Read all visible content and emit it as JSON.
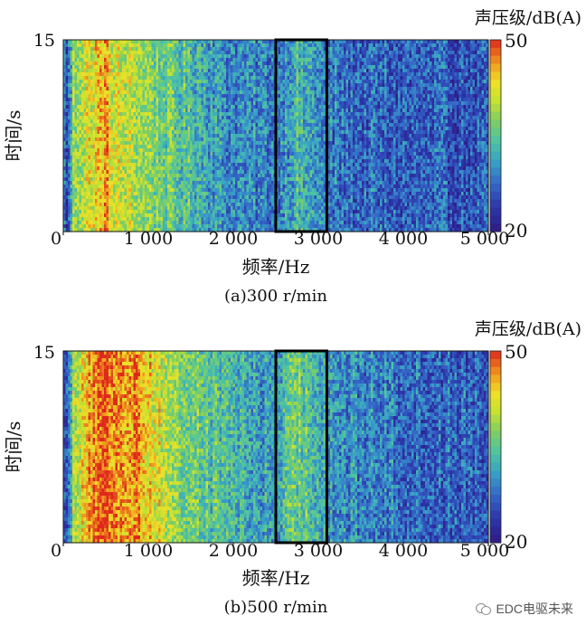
{
  "chart_data": [
    {
      "type": "heatmap",
      "caption": "(a)300 r/min",
      "xlabel": "频率/Hz",
      "ylabel": "时间/s",
      "xlim": [
        0,
        5000
      ],
      "ylim": [
        0,
        15
      ],
      "xticks": [
        0,
        1000,
        2000,
        3000,
        4000,
        5000
      ],
      "xtick_labels": [
        "0",
        "1 000",
        "2 000",
        "3 000",
        "4 000",
        "5 000"
      ],
      "ytick_labels": [
        "0",
        "15"
      ],
      "colorbar": {
        "title": "声压级/dB(A)",
        "min": 20,
        "max": 50,
        "labels": [
          "50",
          "20"
        ]
      },
      "highlight_box": {
        "x": [
          2500,
          3100
        ],
        "y": [
          0,
          15
        ]
      },
      "band_levels": [
        {
          "freq": 0,
          "db": 30
        },
        {
          "freq": 50,
          "db": 24
        },
        {
          "freq": 120,
          "db": 38
        },
        {
          "freq": 250,
          "db": 41
        },
        {
          "freq": 400,
          "db": 43
        },
        {
          "freq": 500,
          "db": 46
        },
        {
          "freq": 600,
          "db": 41
        },
        {
          "freq": 800,
          "db": 40
        },
        {
          "freq": 1000,
          "db": 38
        },
        {
          "freq": 1300,
          "db": 35
        },
        {
          "freq": 1600,
          "db": 33
        },
        {
          "freq": 1900,
          "db": 30
        },
        {
          "freq": 2200,
          "db": 29
        },
        {
          "freq": 2500,
          "db": 29
        },
        {
          "freq": 2750,
          "db": 33
        },
        {
          "freq": 2950,
          "db": 31
        },
        {
          "freq": 3100,
          "db": 28
        },
        {
          "freq": 3600,
          "db": 27
        },
        {
          "freq": 4200,
          "db": 26
        },
        {
          "freq": 5000,
          "db": 26
        }
      ]
    },
    {
      "type": "heatmap",
      "caption": "(b)500 r/min",
      "xlabel": "频率/Hz",
      "ylabel": "时间/s",
      "xlim": [
        0,
        5000
      ],
      "ylim": [
        0,
        15
      ],
      "xticks": [
        0,
        1000,
        2000,
        3000,
        4000,
        5000
      ],
      "xtick_labels": [
        "0",
        "1 000",
        "2 000",
        "3 000",
        "4 000",
        "5 000"
      ],
      "ytick_labels": [
        "0",
        "15"
      ],
      "colorbar": {
        "title": "声压级/dB(A)",
        "min": 20,
        "max": 50,
        "labels": [
          "50",
          "20"
        ]
      },
      "highlight_box": {
        "x": [
          2500,
          3100
        ],
        "y": [
          0,
          15
        ]
      },
      "band_levels": [
        {
          "freq": 0,
          "db": 30
        },
        {
          "freq": 50,
          "db": 24
        },
        {
          "freq": 120,
          "db": 40
        },
        {
          "freq": 250,
          "db": 44
        },
        {
          "freq": 400,
          "db": 47
        },
        {
          "freq": 500,
          "db": 48
        },
        {
          "freq": 700,
          "db": 47
        },
        {
          "freq": 900,
          "db": 46
        },
        {
          "freq": 1100,
          "db": 42
        },
        {
          "freq": 1400,
          "db": 37
        },
        {
          "freq": 1700,
          "db": 35
        },
        {
          "freq": 2000,
          "db": 33
        },
        {
          "freq": 2300,
          "db": 31
        },
        {
          "freq": 2500,
          "db": 31
        },
        {
          "freq": 2750,
          "db": 36
        },
        {
          "freq": 2950,
          "db": 34
        },
        {
          "freq": 3200,
          "db": 30
        },
        {
          "freq": 3700,
          "db": 29
        },
        {
          "freq": 4300,
          "db": 27
        },
        {
          "freq": 5000,
          "db": 27
        }
      ]
    }
  ],
  "watermark": {
    "text": "EDC电驱未来"
  }
}
